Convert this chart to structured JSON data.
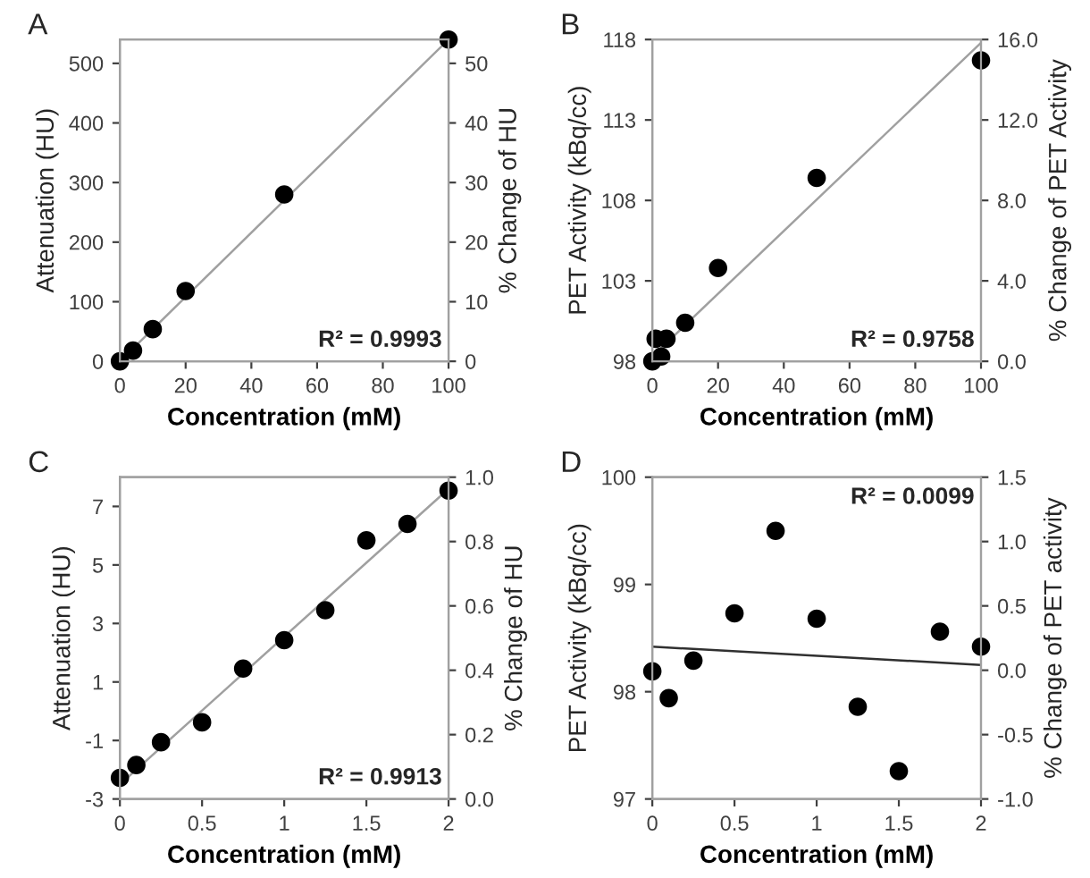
{
  "chart_data": [
    {
      "type": "scatter",
      "title": "A",
      "xlabel": "Concentration (mM)",
      "ylabel": "Attenuation (HU)",
      "y2label": "% Change of HU",
      "x": [
        0,
        4,
        10,
        20,
        50,
        100
      ],
      "series": [
        {
          "color": "#000000",
          "marker": "circle",
          "values": [
            0,
            18,
            54,
            118,
            280,
            540
          ]
        },
        {
          "type": "line",
          "marker": "none",
          "color": "#a0a0a0",
          "x": [
            0,
            100
          ],
          "values": [
            0,
            540
          ]
        }
      ],
      "xlim": [
        0,
        100
      ],
      "xticks": [
        0,
        20,
        40,
        60,
        80,
        100
      ],
      "ylim": [
        0,
        540
      ],
      "yticks": [
        0,
        100,
        200,
        300,
        400,
        500
      ],
      "y2lim": [
        0,
        54
      ],
      "y2ticks": [
        0,
        10,
        20,
        30,
        40,
        50
      ],
      "annotations": [
        "R² = 0.9993"
      ],
      "grid": false
    },
    {
      "type": "scatter",
      "title": "B",
      "xlabel": "Concentration (mM)",
      "ylabel": "PET Activity (kBq/cc)",
      "y2label": "% Change of PET Activity",
      "x": [
        0,
        1,
        2.7,
        4.3,
        10,
        20,
        50,
        100
      ],
      "series": [
        {
          "color": "#000000",
          "marker": "circle",
          "values": [
            98.0,
            99.4,
            98.3,
            99.4,
            100.4,
            103.8,
            109.4,
            116.7
          ]
        },
        {
          "type": "line",
          "marker": "none",
          "color": "#a0a0a0",
          "x": [
            0,
            100
          ],
          "values": [
            98.3,
            117.8
          ]
        }
      ],
      "xlim": [
        0,
        100
      ],
      "xticks": [
        0,
        20,
        40,
        60,
        80,
        100
      ],
      "ylim": [
        98,
        118
      ],
      "yticks": [
        98,
        103,
        108,
        113,
        118
      ],
      "y2lim": [
        0,
        16
      ],
      "y2ticks": [
        {
          "value": 0,
          "label": "0.0"
        },
        {
          "value": 4,
          "label": "4.0"
        },
        {
          "value": 8,
          "label": "8.0"
        },
        {
          "value": 12,
          "label": "12.0"
        },
        {
          "value": 16,
          "label": "16.0"
        }
      ],
      "annotations": [
        "R² = 0.9758"
      ],
      "grid": false
    },
    {
      "type": "scatter",
      "title": "C",
      "xlabel": "Concentration (mM)",
      "ylabel": "Attenuation (HU)",
      "y2label": "% Change of HU",
      "x": [
        0,
        0.1,
        0.25,
        0.5,
        0.75,
        1,
        1.25,
        1.5,
        1.75,
        2
      ],
      "series": [
        {
          "color": "#000000",
          "marker": "circle",
          "values": [
            -2.28,
            -1.84,
            -1.06,
            -0.38,
            1.46,
            2.43,
            3.45,
            5.84,
            6.4,
            7.54
          ]
        },
        {
          "type": "line",
          "marker": "none",
          "color": "#a0a0a0",
          "x": [
            0,
            2
          ],
          "values": [
            -2.5,
            7.6
          ]
        }
      ],
      "xlim": [
        0,
        2
      ],
      "xticks": [
        0,
        0.5,
        1,
        1.5,
        2
      ],
      "ylim": [
        -3,
        8
      ],
      "yticks": [
        -3,
        -1,
        1,
        3,
        5,
        7
      ],
      "y2lim": [
        0,
        1
      ],
      "y2ticks": [
        {
          "value": 0,
          "label": "0.0"
        },
        0.2,
        0.4,
        0.6,
        0.8,
        {
          "value": 1,
          "label": "1.0"
        }
      ],
      "annotations": [
        "R² = 0.9913"
      ],
      "grid": false
    },
    {
      "type": "scatter",
      "title": "D",
      "xlabel": "Concentration (mM)",
      "ylabel": "PET Activity (kBq/cc)",
      "y2label": "% Change of PET activity",
      "x": [
        0,
        0.1,
        0.25,
        0.5,
        0.75,
        1,
        1.25,
        1.5,
        1.75,
        2
      ],
      "series": [
        {
          "color": "#000000",
          "marker": "circle",
          "values": [
            98.19,
            97.94,
            98.29,
            98.73,
            99.5,
            98.68,
            97.86,
            97.26,
            98.56,
            98.42
          ]
        },
        {
          "type": "line",
          "marker": "none",
          "color": "#303030",
          "x": [
            0,
            2
          ],
          "values": [
            98.42,
            98.25
          ]
        }
      ],
      "xlim": [
        0,
        2
      ],
      "xticks": [
        0,
        0.5,
        1,
        1.5,
        2
      ],
      "ylim": [
        97,
        100
      ],
      "yticks": [
        97,
        98,
        99,
        100
      ],
      "y2lim": [
        -1,
        1.5
      ],
      "y2ticks": [
        {
          "value": -1,
          "label": "-1.0"
        },
        {
          "value": -0.5,
          "label": "-0.5"
        },
        {
          "value": 0,
          "label": "0.0"
        },
        {
          "value": 0.5,
          "label": "0.5"
        },
        {
          "value": 1,
          "label": "1.0"
        },
        {
          "value": 1.5,
          "label": "1.5"
        }
      ],
      "annotations": [
        "R² = 0.0099"
      ],
      "grid": false
    }
  ]
}
